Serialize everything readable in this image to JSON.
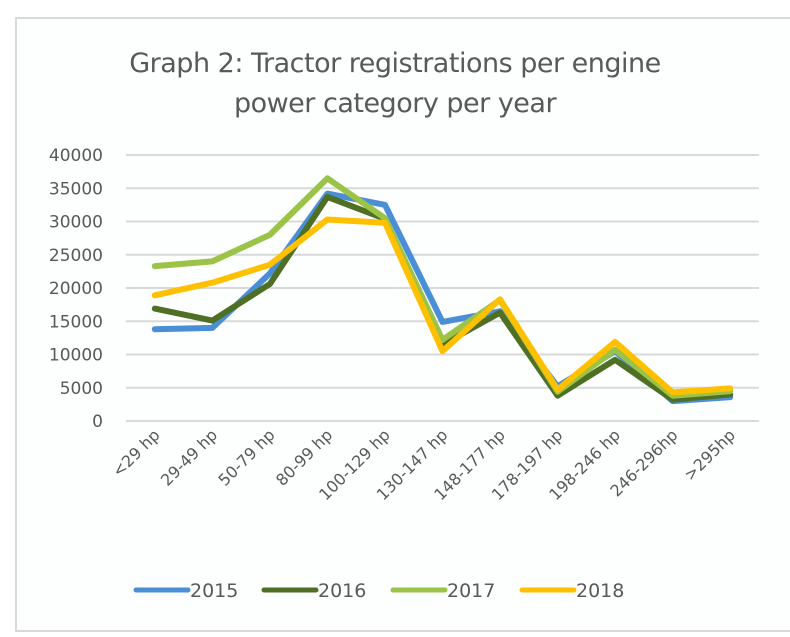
{
  "chart_data": {
    "type": "line",
    "title": "Graph 2: Tractor registrations per engine power category per year",
    "title_lines": [
      "Graph 2: Tractor registrations per engine",
      "power category per year"
    ],
    "xlabel": "",
    "ylabel": "",
    "categories": [
      "<29 hp",
      "29-49 hp",
      "50-79 hp",
      "80-99 hp",
      "100-129 hp",
      "130-147 hp",
      "148-177 hp",
      "178-197 hp",
      "198-246 hp",
      "246-296hp",
      ">295hp"
    ],
    "ylim": [
      0,
      40000
    ],
    "yticks": [
      0,
      5000,
      10000,
      15000,
      20000,
      25000,
      30000,
      35000,
      40000
    ],
    "grid": true,
    "legend_position": "bottom",
    "series": [
      {
        "name": "2015",
        "color": "#4a8fd6",
        "values": [
          13800,
          14000,
          22200,
          34200,
          32500,
          14900,
          16500,
          5200,
          10500,
          3000,
          3600
        ]
      },
      {
        "name": "2016",
        "color": "#4e6f24",
        "values": [
          16900,
          15100,
          20600,
          33700,
          30400,
          11500,
          16300,
          3800,
          9200,
          3200,
          4000
        ]
      },
      {
        "name": "2017",
        "color": "#9bc348",
        "values": [
          23300,
          24000,
          28000,
          36500,
          30500,
          12200,
          18200,
          4400,
          10700,
          3800,
          4500
        ]
      },
      {
        "name": "2018",
        "color": "#ffc000",
        "values": [
          18900,
          20800,
          23500,
          30300,
          29800,
          10500,
          18300,
          4700,
          11900,
          4300,
          4900
        ]
      }
    ]
  }
}
